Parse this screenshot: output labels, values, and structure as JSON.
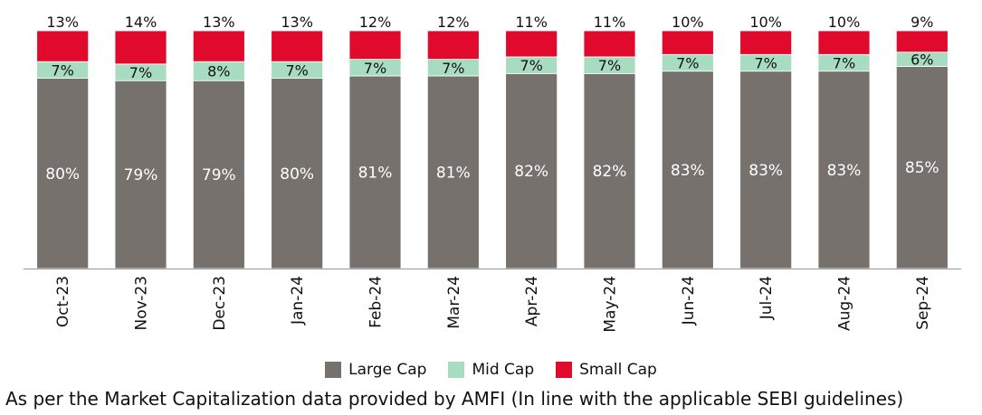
{
  "chart_data": {
    "type": "bar",
    "stacked": true,
    "categories": [
      "Oct-23",
      "Nov-23",
      "Dec-23",
      "Jan-24",
      "Feb-24",
      "Mar-24",
      "Apr-24",
      "May-24",
      "Jun-24",
      "Jul-24",
      "Aug-24",
      "Sep-24"
    ],
    "series": [
      {
        "name": "Large Cap",
        "color": "#77716d",
        "values": [
          80,
          79,
          79,
          80,
          81,
          81,
          82,
          82,
          83,
          83,
          83,
          85
        ]
      },
      {
        "name": "Mid Cap",
        "color": "#a8dcc0",
        "values": [
          7,
          7,
          8,
          7,
          7,
          7,
          7,
          7,
          7,
          7,
          7,
          6
        ]
      },
      {
        "name": "Small Cap",
        "color": "#e10a2d",
        "values": [
          13,
          14,
          13,
          13,
          12,
          12,
          11,
          11,
          10,
          10,
          10,
          9
        ]
      }
    ],
    "data_labels": [
      [
        "80%",
        "79%",
        "79%",
        "80%",
        "81%",
        "81%",
        "82%",
        "82%",
        "83%",
        "83%",
        "83%",
        "85%"
      ],
      [
        "7%",
        "7%",
        "8%",
        "7%",
        "7%",
        "7%",
        "7%",
        "7%",
        "7%",
        "7%",
        "7%",
        "6%"
      ],
      [
        "13%",
        "14%",
        "13%",
        "13%",
        "12%",
        "12%",
        "11%",
        "11%",
        "10%",
        "10%",
        "10%",
        "9%"
      ]
    ],
    "ylim": [
      0,
      100
    ],
    "grid": false,
    "legend_position": "bottom"
  },
  "footnote": "As per the Market Capitalization data provided by AMFI (In line with the applicable SEBI guidelines)"
}
